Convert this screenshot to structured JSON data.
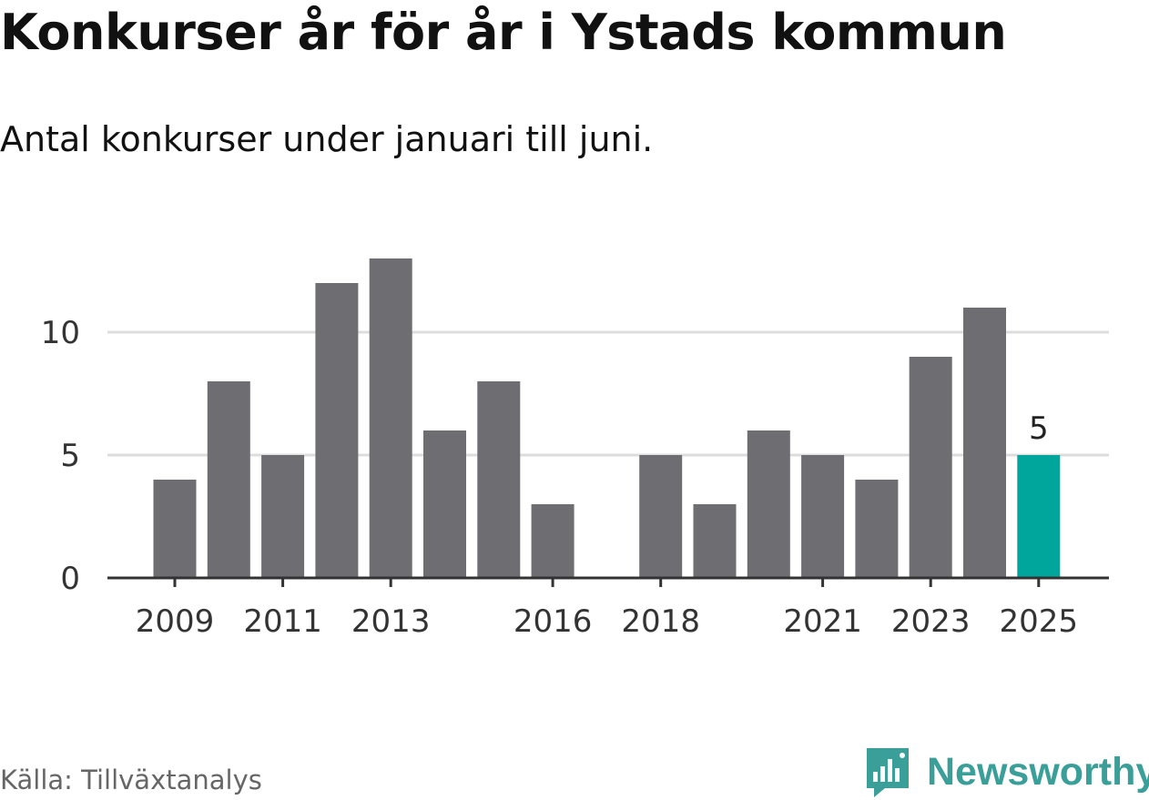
{
  "header": {
    "title": "Konkurser år för år i Ystads kommun",
    "subtitle": "Antal konkurser under januari till juni."
  },
  "footer": {
    "source": "Källa: Tillväxtanalys",
    "brand": "Newsworthy",
    "brand_icon": "newsworthy-logo-icon"
  },
  "colors": {
    "bar": "#6e6d72",
    "highlight": "#00a59b",
    "grid": "#dddddd",
    "axis": "#333333",
    "brand": "#3a9f98"
  },
  "chart_data": {
    "type": "bar",
    "title": "Konkurser år för år i Ystads kommun",
    "subtitle": "Antal konkurser under januari till juni.",
    "xlabel": "",
    "ylabel": "",
    "categories": [
      "2009",
      "2010",
      "2011",
      "2012",
      "2013",
      "2014",
      "2015",
      "2016",
      "2017",
      "2018",
      "2019",
      "2020",
      "2021",
      "2022",
      "2023",
      "2024",
      "2025"
    ],
    "values": [
      4,
      8,
      5,
      12,
      13,
      6,
      8,
      3,
      0,
      5,
      3,
      6,
      5,
      4,
      9,
      11,
      5
    ],
    "highlight": "2025",
    "data_labels": [
      {
        "category": "2025",
        "text": "5"
      }
    ],
    "xticks": [
      "2009",
      "2011",
      "2013",
      "2016",
      "2018",
      "2021",
      "2023",
      "2025"
    ],
    "yticks": [
      0,
      5,
      10
    ],
    "ylim": [
      0,
      13
    ],
    "grid": true,
    "legend": "none"
  }
}
